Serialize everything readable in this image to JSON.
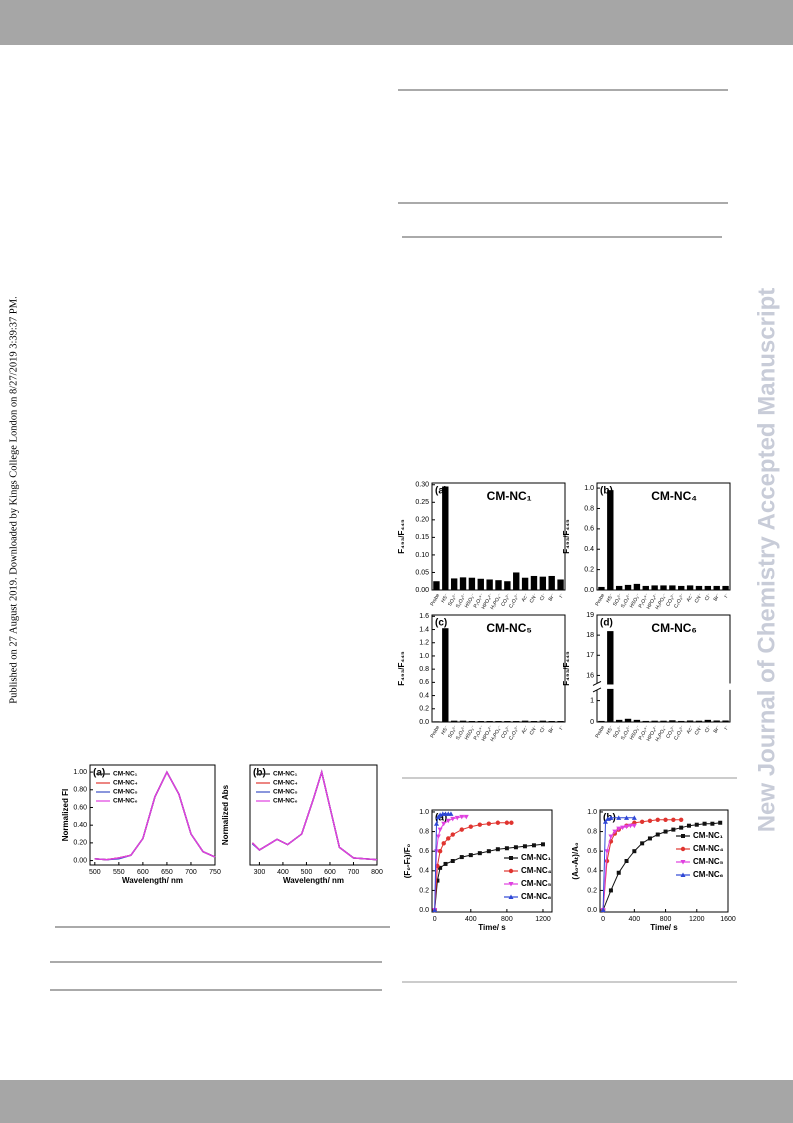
{
  "side_note": "Published on 27 August 2019. Downloaded by Kings College London on 8/27/2019 3:39:37 PM.",
  "journal_banner": "New Journal of Chemistry Accepted Manuscript",
  "figures": [
    {
      "type": "line",
      "panel_label": "(a)",
      "x_label": "Wavelength/ nm",
      "y_label": "Normalized FI",
      "xlim": [
        490,
        750
      ],
      "xticks": [
        500,
        550,
        600,
        650,
        700,
        750
      ],
      "ylim": [
        -0.05,
        1.08
      ],
      "yticks": [
        {
          "value": 0,
          "label": "0.00"
        },
        {
          "value": 0.2,
          "label": "0.20"
        },
        {
          "value": 0.4,
          "label": "0.40"
        },
        {
          "value": 0.6,
          "label": "0.60"
        },
        {
          "value": 0.8,
          "label": "0.80"
        },
        {
          "value": 1,
          "label": "1.00"
        }
      ],
      "x": [
        500,
        525,
        550,
        575,
        600,
        625,
        650,
        675,
        700,
        725,
        750
      ],
      "series": [
        {
          "name": "CM-NC₁",
          "color": "#333333",
          "values": [
            0.02,
            0.01,
            0.03,
            0.06,
            0.25,
            0.72,
            1.0,
            0.75,
            0.3,
            0.1,
            0.04
          ]
        },
        {
          "name": "CM-NC₄",
          "color": "#e0342f",
          "values": [
            0.02,
            0.01,
            0.03,
            0.06,
            0.25,
            0.72,
            1.0,
            0.75,
            0.3,
            0.1,
            0.04
          ]
        },
        {
          "name": "CM-NC₅",
          "color": "#3b4fc4",
          "values": [
            0.02,
            0.01,
            0.02,
            0.06,
            0.25,
            0.72,
            1.0,
            0.75,
            0.3,
            0.1,
            0.04
          ]
        },
        {
          "name": "CM-NC₆",
          "color": "#e040e0",
          "values": [
            0.02,
            0.01,
            0.03,
            0.06,
            0.25,
            0.72,
            1.0,
            0.75,
            0.3,
            0.1,
            0.04
          ]
        }
      ]
    },
    {
      "type": "line",
      "panel_label": "(b)",
      "x_label": "Wavelength/ nm",
      "y_label": "Normalized Abs",
      "xlim": [
        260,
        800
      ],
      "xticks": [
        300,
        400,
        500,
        600,
        700,
        800
      ],
      "ylim": [
        -0.05,
        1.08
      ],
      "x": [
        270,
        300,
        350,
        375,
        420,
        480,
        530,
        565,
        600,
        640,
        700,
        800
      ],
      "series": [
        {
          "name": "CM-NC₁",
          "color": "#333333",
          "values": [
            0.2,
            0.12,
            0.2,
            0.24,
            0.18,
            0.3,
            0.7,
            1.0,
            0.6,
            0.15,
            0.03,
            0.01
          ]
        },
        {
          "name": "CM-NC₄",
          "color": "#e0342f",
          "values": [
            0.2,
            0.12,
            0.2,
            0.24,
            0.18,
            0.3,
            0.7,
            1.0,
            0.6,
            0.15,
            0.03,
            0.01
          ]
        },
        {
          "name": "CM-NC₅",
          "color": "#3b4fc4",
          "values": [
            0.19,
            0.12,
            0.2,
            0.24,
            0.18,
            0.3,
            0.7,
            1.0,
            0.6,
            0.15,
            0.03,
            0.01
          ]
        },
        {
          "name": "CM-NC₆",
          "color": "#e040e0",
          "values": [
            0.2,
            0.12,
            0.2,
            0.24,
            0.18,
            0.3,
            0.7,
            1.0,
            0.6,
            0.15,
            0.03,
            0.01
          ]
        }
      ]
    },
    {
      "type": "bar",
      "panel_label": "(a)",
      "title": "CM-NC₁",
      "y_label": "F₄₉₃/F₄₄₅",
      "color": "#000000",
      "categories": [
        "Probe",
        "HS⁻",
        "SO₃²⁻",
        "S₂O₃²⁻",
        "HSO₃⁻",
        "P₂O₇⁴⁻",
        "HPO₄²⁻",
        "H₂PO₄⁻",
        "CO₃²⁻",
        "C₂O₄²⁻",
        "Ac⁻",
        "CN⁻",
        "Cl⁻",
        "Br⁻",
        "I⁻"
      ],
      "ylim": [
        0,
        0.305
      ],
      "yticks": [
        {
          "value": 0,
          "label": "0.00"
        },
        {
          "value": 0.05,
          "label": "0.05"
        },
        {
          "value": 0.1,
          "label": "0.10"
        },
        {
          "value": 0.15,
          "label": "0.15"
        },
        {
          "value": 0.2,
          "label": "0.20"
        },
        {
          "value": 0.25,
          "label": "0.25"
        },
        {
          "value": 0.3,
          "label": "0.30"
        }
      ],
      "values": [
        0.025,
        0.295,
        0.033,
        0.036,
        0.035,
        0.032,
        0.03,
        0.028,
        0.025,
        0.05,
        0.035,
        0.04,
        0.038,
        0.04,
        0.03
      ]
    },
    {
      "type": "bar",
      "panel_label": "(b)",
      "title": "CM-NC₄",
      "y_label": "F₄₉₃/F₄₄₅",
      "color": "#000000",
      "categories": [
        "Probe",
        "HS⁻",
        "SO₃²⁻",
        "S₂O₃²⁻",
        "HSO₃⁻",
        "P₂O₇⁴⁻",
        "HPO₄²⁻",
        "H₂PO₄⁻",
        "CO₃²⁻",
        "C₂O₄²⁻",
        "Ac⁻",
        "CN⁻",
        "Cl⁻",
        "Br⁻",
        "I⁻"
      ],
      "ylim": [
        0,
        1.05
      ],
      "yticks": [
        {
          "value": 0,
          "label": "0.0"
        },
        {
          "value": 0.2,
          "label": "0.2"
        },
        {
          "value": 0.4,
          "label": "0.4"
        },
        {
          "value": 0.6,
          "label": "0.6"
        },
        {
          "value": 0.8,
          "label": "0.8"
        },
        {
          "value": 1,
          "label": "1.0"
        }
      ],
      "values": [
        0.03,
        0.98,
        0.04,
        0.05,
        0.06,
        0.04,
        0.045,
        0.045,
        0.045,
        0.04,
        0.045,
        0.04,
        0.04,
        0.04,
        0.04
      ]
    },
    {
      "type": "bar",
      "panel_label": "(c)",
      "title": "CM-NC₅",
      "y_label": "F₄₉₃/F₄₄₅",
      "color": "#000000",
      "categories": [
        "Probe",
        "HS⁻",
        "SO₃²⁻",
        "S₂O₃²⁻",
        "HSO₃⁻",
        "P₂O₇⁴⁻",
        "HPO₄²⁻",
        "H₂PO₄⁻",
        "CO₃²⁻",
        "C₂O₄²⁻",
        "Ac⁻",
        "CN⁻",
        "Cl⁻",
        "Br⁻",
        "I⁻"
      ],
      "ylim": [
        0,
        1.62
      ],
      "yticks": [
        {
          "value": 0,
          "label": "0.0"
        },
        {
          "value": 0.2,
          "label": "0.2"
        },
        {
          "value": 0.4,
          "label": "0.4"
        },
        {
          "value": 0.6,
          "label": "0.6"
        },
        {
          "value": 0.8,
          "label": "0.8"
        },
        {
          "value": 1,
          "label": "1.0"
        },
        {
          "value": 1.2,
          "label": "1.2"
        },
        {
          "value": 1.4,
          "label": "1.4"
        },
        {
          "value": 1.6,
          "label": "1.6"
        }
      ],
      "values": [
        0.01,
        1.42,
        0.02,
        0.02,
        0.015,
        0.015,
        0.015,
        0.015,
        0.015,
        0.015,
        0.02,
        0.015,
        0.02,
        0.015,
        0.015
      ]
    },
    {
      "type": "bar",
      "panel_label": "(d)",
      "title": "CM-NC₆",
      "y_label": "F₄₉₃/F₄₄₅",
      "color": "#000000",
      "categories": [
        "Probe",
        "HS⁻",
        "SO₃²⁻",
        "S₂O₃²⁻",
        "HSO₃⁻",
        "P₂O₇⁴⁻",
        "HPO₄²⁻",
        "H₂PO₄⁻",
        "CO₃²⁻",
        "C₂O₄²⁻",
        "Ac⁻",
        "CN⁻",
        "Cl⁻",
        "Br⁻",
        "I⁻"
      ],
      "ylim": [
        0,
        19
      ],
      "ybreak": [
        1.5,
        15.6
      ],
      "yticks": [
        0,
        1,
        16,
        17,
        18,
        19
      ],
      "values": [
        0.05,
        18.2,
        0.1,
        0.15,
        0.1,
        0.05,
        0.06,
        0.06,
        0.08,
        0.05,
        0.07,
        0.06,
        0.1,
        0.07,
        0.07
      ]
    },
    {
      "type": "line",
      "panel_label": "(a)",
      "x_label": "Time/ s",
      "y_label": "(F₀-Fₜ)/F₀",
      "xlim": [
        -30,
        1300
      ],
      "xticks": [
        0,
        400,
        800,
        1200
      ],
      "ylim": [
        -0.02,
        1.02
      ],
      "yticks": [
        {
          "value": 0,
          "label": "0.0"
        },
        {
          "value": 0.2,
          "label": "0.2"
        },
        {
          "value": 0.4,
          "label": "0.4"
        },
        {
          "value": 0.6,
          "label": "0.6"
        },
        {
          "value": 0.8,
          "label": "0.8"
        },
        {
          "value": 1,
          "label": "1.0"
        }
      ],
      "series": [
        {
          "name": "CM-NC₁",
          "color": "#111111",
          "marker": "square",
          "x": [
            0,
            30,
            60,
            120,
            200,
            300,
            400,
            500,
            600,
            700,
            800,
            900,
            1000,
            1100,
            1200
          ],
          "values": [
            0,
            0.3,
            0.43,
            0.47,
            0.5,
            0.54,
            0.56,
            0.58,
            0.6,
            0.62,
            0.63,
            0.64,
            0.65,
            0.66,
            0.67
          ]
        },
        {
          "name": "CM-NC₄",
          "color": "#e0342f",
          "marker": "circle",
          "x": [
            0,
            30,
            60,
            100,
            150,
            200,
            300,
            400,
            500,
            600,
            700,
            800,
            850
          ],
          "values": [
            0,
            0.45,
            0.6,
            0.68,
            0.73,
            0.77,
            0.82,
            0.85,
            0.87,
            0.88,
            0.89,
            0.89,
            0.89
          ]
        },
        {
          "name": "CM-NC₅",
          "color": "#e040e0",
          "marker": "triangle-down",
          "x": [
            0,
            20,
            40,
            60,
            100,
            150,
            200,
            250,
            300,
            350
          ],
          "values": [
            0,
            0.6,
            0.75,
            0.82,
            0.88,
            0.91,
            0.93,
            0.94,
            0.95,
            0.95
          ]
        },
        {
          "name": "CM-NC₆",
          "color": "#2f47d6",
          "marker": "triangle",
          "x": [
            0,
            20,
            40,
            60,
            90,
            120,
            150,
            180
          ],
          "values": [
            0,
            0.88,
            0.95,
            0.97,
            0.98,
            0.98,
            0.98,
            0.98
          ]
        }
      ]
    },
    {
      "type": "line",
      "panel_label": "(b)",
      "x_label": "Time/ s",
      "y_label": "(A₀-Aₜ)/A₀",
      "xlim": [
        -40,
        1600
      ],
      "xticks": [
        0,
        400,
        800,
        1200,
        1600
      ],
      "ylim": [
        -0.02,
        1.02
      ],
      "yticks": [
        {
          "value": 0,
          "label": "0.0"
        },
        {
          "value": 0.2,
          "label": "0.2"
        },
        {
          "value": 0.4,
          "label": "0.4"
        },
        {
          "value": 0.6,
          "label": "0.6"
        },
        {
          "value": 0.8,
          "label": "0.8"
        },
        {
          "value": 1,
          "label": "1.0"
        }
      ],
      "series": [
        {
          "name": "CM-NC₁",
          "color": "#111111",
          "marker": "square",
          "x": [
            0,
            100,
            200,
            300,
            400,
            500,
            600,
            700,
            800,
            900,
            1000,
            1100,
            1200,
            1300,
            1400,
            1500
          ],
          "values": [
            0,
            0.2,
            0.38,
            0.5,
            0.6,
            0.68,
            0.73,
            0.77,
            0.8,
            0.82,
            0.84,
            0.86,
            0.87,
            0.88,
            0.88,
            0.89
          ]
        },
        {
          "name": "CM-NC₄",
          "color": "#e0342f",
          "marker": "circle",
          "x": [
            0,
            50,
            100,
            150,
            200,
            300,
            400,
            500,
            600,
            700,
            800,
            900,
            1000
          ],
          "values": [
            0,
            0.5,
            0.7,
            0.78,
            0.82,
            0.86,
            0.89,
            0.9,
            0.91,
            0.92,
            0.92,
            0.92,
            0.92
          ]
        },
        {
          "name": "CM-NC₅",
          "color": "#e040e0",
          "marker": "triangle-down",
          "x": [
            0,
            50,
            100,
            150,
            200,
            250,
            300,
            350,
            400
          ],
          "values": [
            0,
            0.6,
            0.75,
            0.8,
            0.83,
            0.84,
            0.85,
            0.86,
            0.86
          ]
        },
        {
          "name": "CM-NC₆",
          "color": "#2f47d6",
          "marker": "triangle",
          "x": [
            0,
            30,
            60,
            100,
            200,
            300,
            400
          ],
          "values": [
            0,
            0.9,
            0.93,
            0.94,
            0.94,
            0.94,
            0.94
          ]
        }
      ]
    }
  ]
}
